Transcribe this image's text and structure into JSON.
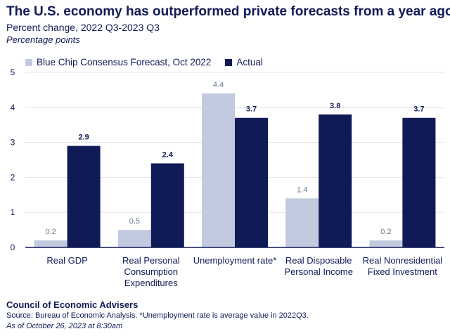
{
  "chart_data": {
    "type": "bar",
    "title": "The U.S. economy has outperformed private forecasts from a year ago.",
    "subtitle": "Percent change, 2022 Q3-2023 Q3",
    "unit_note": "Percentage points",
    "categories": [
      [
        "Real GDP"
      ],
      [
        "Real Personal",
        "Consumption",
        "Expenditures"
      ],
      [
        "Unemployment rate*"
      ],
      [
        "Real Disposable",
        "Personal Income"
      ],
      [
        "Real Nonresidential",
        "Fixed Investment"
      ]
    ],
    "series": [
      {
        "name": "Blue Chip Consensus Forecast, Oct 2022",
        "color": "#c2cadf",
        "label_color": "#6b7799",
        "values": [
          0.2,
          0.5,
          4.4,
          1.4,
          0.2
        ],
        "labels": [
          "0.2",
          "0.5",
          "4.4",
          "1.4",
          "0.2"
        ]
      },
      {
        "name": "Actual",
        "color": "#0f1a57",
        "label_color": "#0f1a57",
        "values": [
          2.9,
          2.4,
          3.7,
          3.8,
          3.7
        ],
        "labels": [
          "2.9",
          "2.4",
          "3.7",
          "3.8",
          "3.7"
        ]
      }
    ],
    "ylim": [
      0,
      5
    ],
    "yticks": [
      "0",
      "1",
      "2",
      "3",
      "4",
      "5"
    ],
    "grid": true,
    "legend_position": "top-left"
  },
  "footer": {
    "organization": "Council of Economic Advisers",
    "source": "Source: Bureau of Economic Analysis. *Unemployment rate is average value in 2022Q3.",
    "timestamp": "As of October 26, 2023 at 8:30am"
  }
}
